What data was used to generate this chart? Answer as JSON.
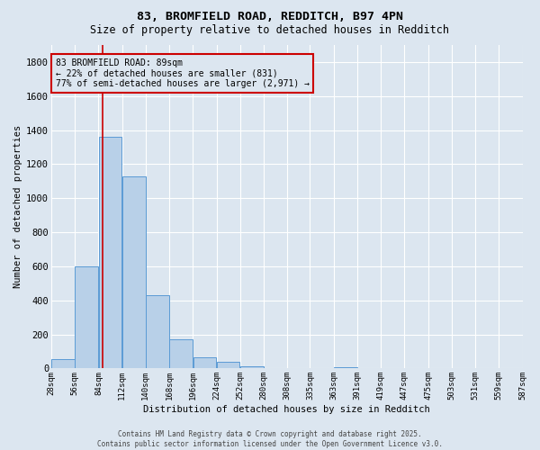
{
  "title1": "83, BROMFIELD ROAD, REDDITCH, B97 4PN",
  "title2": "Size of property relative to detached houses in Redditch",
  "xlabel": "Distribution of detached houses by size in Redditch",
  "ylabel": "Number of detached properties",
  "bin_edges": [
    28,
    56,
    84,
    112,
    140,
    168,
    196,
    224,
    252,
    280,
    308,
    335,
    363,
    391,
    419,
    447,
    475,
    503,
    531,
    559,
    587
  ],
  "bar_heights": [
    55,
    600,
    1360,
    1130,
    430,
    170,
    65,
    40,
    15,
    0,
    0,
    0,
    10,
    0,
    0,
    0,
    0,
    0,
    0,
    0
  ],
  "bar_color": "#b8d0e8",
  "bar_edge_color": "#5b9bd5",
  "bg_color": "#dce6f0",
  "grid_color": "#ffffff",
  "property_size": 89,
  "vline_color": "#cc0000",
  "annotation_text": "83 BROMFIELD ROAD: 89sqm\n← 22% of detached houses are smaller (831)\n77% of semi-detached houses are larger (2,971) →",
  "annotation_box_edge": "#cc0000",
  "ylim": [
    0,
    1900
  ],
  "yticks": [
    0,
    200,
    400,
    600,
    800,
    1000,
    1200,
    1400,
    1600,
    1800
  ],
  "tick_labels": [
    "28sqm",
    "56sqm",
    "84sqm",
    "112sqm",
    "140sqm",
    "168sqm",
    "196sqm",
    "224sqm",
    "252sqm",
    "280sqm",
    "308sqm",
    "335sqm",
    "363sqm",
    "391sqm",
    "419sqm",
    "447sqm",
    "475sqm",
    "503sqm",
    "531sqm",
    "559sqm",
    "587sqm"
  ],
  "footer1": "Contains HM Land Registry data © Crown copyright and database right 2025.",
  "footer2": "Contains public sector information licensed under the Open Government Licence v3.0."
}
